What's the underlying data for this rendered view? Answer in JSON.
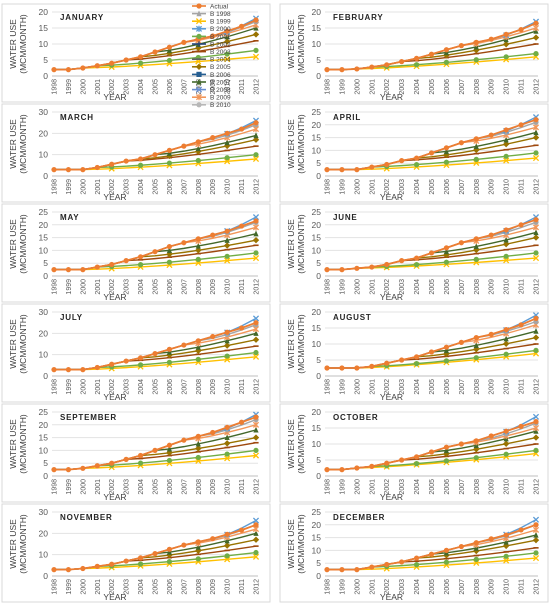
{
  "figure": {
    "legend": {
      "placement": "inside-top-right of the first panel",
      "entries": [
        {
          "name": "Actual",
          "color": "#ed7d31",
          "marker": "circle"
        },
        {
          "name": "B 1998",
          "color": "#a5a5a5",
          "marker": "triangle"
        },
        {
          "name": "B 1999",
          "color": "#ffc000",
          "marker": "x"
        },
        {
          "name": "B 2000",
          "color": "#5b9bd5",
          "marker": "star"
        },
        {
          "name": "B 2001",
          "color": "#70ad47",
          "marker": "circle"
        },
        {
          "name": "B 2002",
          "color": "#264478",
          "marker": "plus"
        },
        {
          "name": "B 2003",
          "color": "#9e480e",
          "marker": "dash"
        },
        {
          "name": "B 2004",
          "color": "#636363",
          "marker": "dash"
        },
        {
          "name": "B 2005",
          "color": "#997300",
          "marker": "diamond"
        },
        {
          "name": "B 2006",
          "color": "#255e91",
          "marker": "square"
        },
        {
          "name": "B 2007",
          "color": "#43682b",
          "marker": "triangle"
        },
        {
          "name": "B 2008",
          "color": "#698ed0",
          "marker": "x"
        },
        {
          "name": "B 2009",
          "color": "#f1975a",
          "marker": "star"
        },
        {
          "name": "B 2010",
          "color": "#b7b7b7",
          "marker": "circle"
        }
      ]
    }
  },
  "chart_data": [
    {
      "type": "line",
      "title": "JANUARY",
      "xlabel": "YEAR",
      "ylabel": "WATER USE (MCM/MONTH)",
      "ylim": [
        0,
        20
      ],
      "yticks": [
        0,
        5,
        10,
        15,
        20
      ],
      "grid": true,
      "x": [
        "1998",
        "1999",
        "2000",
        "2001",
        "2002",
        "2003",
        "2004",
        "2005",
        "2006",
        "2007",
        "2008",
        "2009",
        "2010",
        "2011",
        "2012"
      ],
      "series": [
        {
          "name": "Actual",
          "values": [
            2,
            2,
            2.5,
            3.2,
            4,
            5,
            6,
            7.5,
            9,
            10.5,
            11.5,
            12.5,
            14,
            15.5,
            17.5
          ]
        }
      ],
      "projections_end_2012": [
        6,
        8,
        11,
        13,
        15,
        16,
        17,
        18
      ]
    },
    {
      "type": "line",
      "title": "FEBRUARY",
      "xlabel": "YEAR",
      "ylabel": "WATER USE (MCM/MONTH)",
      "ylim": [
        0,
        20
      ],
      "yticks": [
        0,
        5,
        10,
        15,
        20
      ],
      "grid": true,
      "x": [
        "1998",
        "1999",
        "2000",
        "2001",
        "2002",
        "2003",
        "2004",
        "2005",
        "2006",
        "2007",
        "2008",
        "2009",
        "2010",
        "2011",
        "2012"
      ],
      "series": [
        {
          "name": "Actual",
          "values": [
            2,
            2,
            2.2,
            2.8,
            3.5,
            4.5,
            5.5,
            6.8,
            8.2,
            9.5,
            10.5,
            11.5,
            13,
            14.5,
            16.5
          ]
        }
      ],
      "projections_end_2012": [
        6,
        7,
        10,
        12,
        14,
        15,
        16.5,
        17
      ]
    },
    {
      "type": "line",
      "title": "MARCH",
      "xlabel": "YEAR",
      "ylabel": "WATER USE (MCM/MONTH)",
      "ylim": [
        0,
        30
      ],
      "yticks": [
        0,
        10,
        20,
        30
      ],
      "grid": true,
      "x": [
        "1998",
        "1999",
        "2000",
        "2001",
        "2002",
        "2003",
        "2004",
        "2005",
        "2006",
        "2007",
        "2008",
        "2009",
        "2010",
        "2011",
        "2012"
      ],
      "series": [
        {
          "name": "Actual",
          "values": [
            3,
            3,
            3,
            4,
            5.5,
            7,
            8,
            10,
            12,
            14,
            16,
            18,
            20,
            22,
            25
          ]
        }
      ],
      "projections_end_2012": [
        8,
        10,
        14,
        17,
        19,
        22,
        24,
        26
      ]
    },
    {
      "type": "line",
      "title": "APRIL",
      "xlabel": "YEAR",
      "ylabel": "WATER USE (MCM/MONTH)",
      "ylim": [
        0,
        25
      ],
      "yticks": [
        0,
        5,
        10,
        15,
        20,
        25
      ],
      "grid": true,
      "x": [
        "1998",
        "1999",
        "2000",
        "2001",
        "2002",
        "2003",
        "2004",
        "2005",
        "2006",
        "2007",
        "2008",
        "2009",
        "2010",
        "2011",
        "2012"
      ],
      "series": [
        {
          "name": "Actual",
          "values": [
            2.5,
            2.5,
            2.5,
            3.5,
            4.5,
            6,
            7,
            9,
            11,
            13,
            14.5,
            16,
            18,
            20,
            22
          ]
        }
      ],
      "projections_end_2012": [
        7,
        9,
        12,
        15,
        17,
        19,
        21,
        23
      ]
    },
    {
      "type": "line",
      "title": "MAY",
      "xlabel": "YEAR",
      "ylabel": "WATER USE (MCM/MONTH)",
      "ylim": [
        0,
        25
      ],
      "yticks": [
        0,
        5,
        10,
        15,
        20,
        25
      ],
      "grid": true,
      "x": [
        "1998",
        "1999",
        "2000",
        "2001",
        "2002",
        "2003",
        "2004",
        "2005",
        "2006",
        "2007",
        "2008",
        "2009",
        "2010",
        "2011",
        "2012"
      ],
      "series": [
        {
          "name": "Actual",
          "values": [
            2.5,
            2.5,
            2.5,
            3.5,
            4.5,
            6,
            7.5,
            9.5,
            11.5,
            13,
            14.5,
            16,
            17.5,
            19.5,
            21.5
          ]
        }
      ],
      "projections_end_2012": [
        7,
        9,
        12,
        14,
        16.5,
        19,
        21,
        23
      ]
    },
    {
      "type": "line",
      "title": "JUNE",
      "xlabel": "YEAR",
      "ylabel": "WATER USE (MCM/MONTH)",
      "ylim": [
        0,
        25
      ],
      "yticks": [
        0,
        5,
        10,
        15,
        20,
        25
      ],
      "grid": true,
      "x": [
        "1998",
        "1999",
        "2000",
        "2001",
        "2002",
        "2003",
        "2004",
        "2005",
        "2006",
        "2007",
        "2008",
        "2009",
        "2010",
        "2011",
        "2012"
      ],
      "series": [
        {
          "name": "Actual",
          "values": [
            2.5,
            2.5,
            3,
            3.5,
            4.5,
            6,
            7,
            9,
            11,
            13,
            14.5,
            16,
            18,
            20,
            22
          ]
        }
      ],
      "projections_end_2012": [
        7,
        9,
        12,
        15,
        17,
        19,
        21,
        23
      ]
    },
    {
      "type": "line",
      "title": "JULY",
      "xlabel": "YEAR",
      "ylabel": "WATER USE (MCM/MONTH)",
      "ylim": [
        0,
        30
      ],
      "yticks": [
        0,
        10,
        20,
        30
      ],
      "grid": true,
      "x": [
        "1998",
        "1999",
        "2000",
        "2001",
        "2002",
        "2003",
        "2004",
        "2005",
        "2006",
        "2007",
        "2008",
        "2009",
        "2010",
        "2011",
        "2012"
      ],
      "series": [
        {
          "name": "Actual",
          "values": [
            3,
            3,
            3,
            4,
            5.5,
            7,
            8.5,
            10.5,
            12.5,
            14.5,
            16.5,
            18.5,
            20.5,
            22.5,
            25
          ]
        }
      ],
      "projections_end_2012": [
        9,
        11,
        14,
        17,
        20,
        22,
        24,
        27
      ]
    },
    {
      "type": "line",
      "title": "AUGUST",
      "xlabel": "YEAR",
      "ylabel": "WATER USE (MCM/MONTH)",
      "ylim": [
        0,
        20
      ],
      "yticks": [
        0,
        5,
        10,
        15,
        20
      ],
      "grid": true,
      "x": [
        "1998",
        "1999",
        "2000",
        "2001",
        "2002",
        "2003",
        "2004",
        "2005",
        "2006",
        "2007",
        "2008",
        "2009",
        "2010",
        "2011",
        "2012"
      ],
      "series": [
        {
          "name": "Actual",
          "values": [
            2.5,
            2.5,
            2.5,
            3,
            4,
            5,
            6,
            7.5,
            9,
            10.5,
            12,
            13,
            14.5,
            16,
            18
          ]
        }
      ],
      "projections_end_2012": [
        7,
        8,
        10,
        12,
        14,
        16,
        17,
        19
      ]
    },
    {
      "type": "line",
      "title": "SEPTEMBER",
      "xlabel": "YEAR",
      "ylabel": "WATER USE (MCM/MONTH)",
      "ylim": [
        0,
        25
      ],
      "yticks": [
        0,
        5,
        10,
        15,
        20,
        25
      ],
      "grid": true,
      "x": [
        "1998",
        "1999",
        "2000",
        "2001",
        "2002",
        "2003",
        "2004",
        "2005",
        "2006",
        "2007",
        "2008",
        "2009",
        "2010",
        "2011",
        "2012"
      ],
      "series": [
        {
          "name": "Actual",
          "values": [
            2.5,
            2.5,
            3,
            4,
            5,
            6.5,
            8,
            10,
            12,
            14,
            15.5,
            17,
            19,
            21,
            23
          ]
        }
      ],
      "projections_end_2012": [
        8,
        10,
        13,
        15,
        18,
        20,
        22,
        24
      ]
    },
    {
      "type": "line",
      "title": "OCTOBER",
      "xlabel": "YEAR",
      "ylabel": "WATER USE (MCM/MONTH)",
      "ylim": [
        0,
        20
      ],
      "yticks": [
        0,
        5,
        10,
        15,
        20
      ],
      "grid": true,
      "x": [
        "1998",
        "1999",
        "2000",
        "2001",
        "2002",
        "2003",
        "2004",
        "2005",
        "2006",
        "2007",
        "2008",
        "2009",
        "2010",
        "2011",
        "2012"
      ],
      "series": [
        {
          "name": "Actual",
          "values": [
            2,
            2,
            2.5,
            3,
            4,
            5,
            6,
            7.5,
            9,
            10,
            11,
            12.5,
            14,
            15.5,
            17
          ]
        }
      ],
      "projections_end_2012": [
        7,
        8,
        10,
        12,
        14,
        15,
        16.5,
        18.5
      ]
    },
    {
      "type": "line",
      "title": "NOVEMBER",
      "xlabel": "YEAR",
      "ylabel": "WATER USE (MCM/MONTH)",
      "ylim": [
        0,
        30
      ],
      "yticks": [
        0,
        10,
        20,
        30
      ],
      "grid": true,
      "x": [
        "1998",
        "1999",
        "2000",
        "2001",
        "2002",
        "2003",
        "2004",
        "2005",
        "2006",
        "2007",
        "2008",
        "2009",
        "2010",
        "2011",
        "2012"
      ],
      "series": [
        {
          "name": "Actual",
          "values": [
            3,
            3,
            3.5,
            4.5,
            5.5,
            7,
            8.5,
            10.5,
            12.5,
            14.5,
            16,
            17.5,
            19.5,
            21.5,
            24
          ]
        }
      ],
      "projections_end_2012": [
        9,
        11,
        14,
        17,
        20,
        22,
        24,
        26
      ]
    },
    {
      "type": "line",
      "title": "DECEMBER",
      "xlabel": "YEAR",
      "ylabel": "WATER USE (MCM/MONTH)",
      "ylim": [
        0,
        25
      ],
      "yticks": [
        0,
        5,
        10,
        15,
        20,
        25
      ],
      "grid": true,
      "x": [
        "1998",
        "1999",
        "2000",
        "2001",
        "2002",
        "2003",
        "2004",
        "2005",
        "2006",
        "2007",
        "2008",
        "2009",
        "2010",
        "2011",
        "2012"
      ],
      "series": [
        {
          "name": "Actual",
          "values": [
            2.5,
            2.5,
            2.5,
            3.5,
            4.5,
            5.5,
            7,
            8.5,
            10,
            11.5,
            13,
            14.5,
            16,
            18,
            20
          ]
        }
      ],
      "projections_end_2012": [
        7,
        9,
        11,
        14,
        16,
        18,
        20,
        22
      ]
    }
  ]
}
